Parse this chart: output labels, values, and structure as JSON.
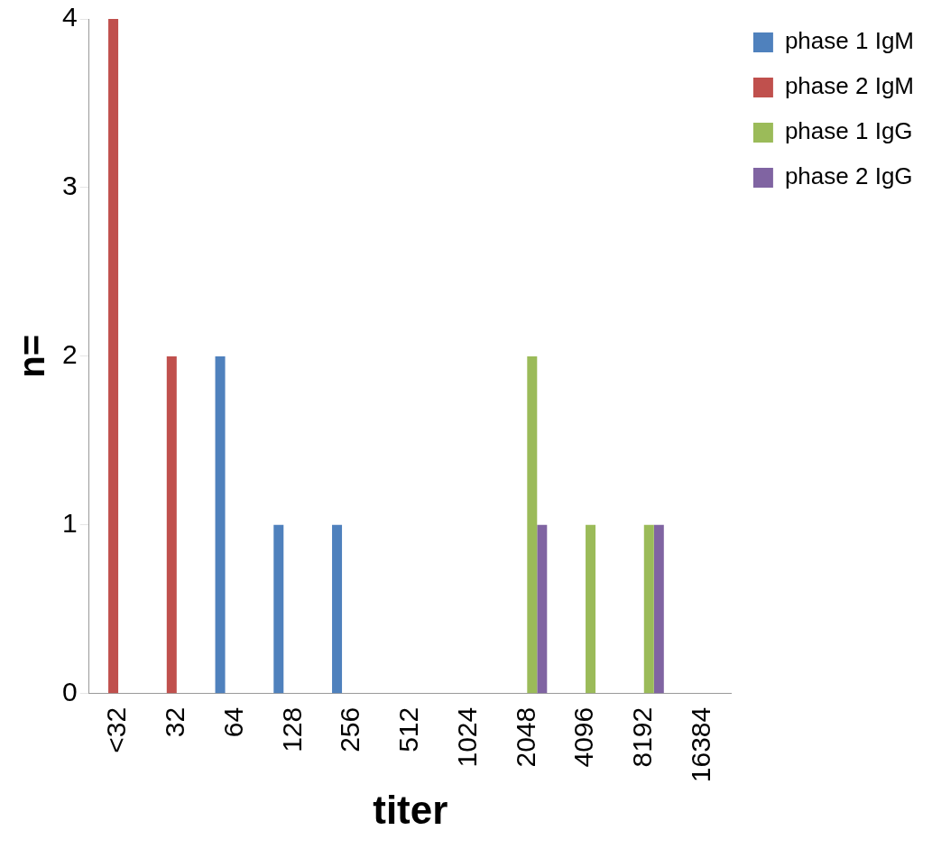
{
  "chart_data": {
    "type": "bar",
    "xlabel": "titer",
    "ylabel": "n=",
    "categories": [
      "<32",
      "32",
      "64",
      "128",
      "256",
      "512",
      "1024",
      "2048",
      "4096",
      "8192",
      "16384"
    ],
    "series": [
      {
        "name": "phase 1 IgM",
        "color": "#4f81bd",
        "values": [
          0,
          0,
          2,
          1,
          1,
          0,
          0,
          0,
          0,
          0,
          0
        ]
      },
      {
        "name": "phase 2 IgM",
        "color": "#c0504d",
        "values": [
          4,
          2,
          0,
          0,
          0,
          0,
          0,
          0,
          0,
          0,
          0
        ]
      },
      {
        "name": "phase 1 IgG",
        "color": "#9bbb59",
        "values": [
          0,
          0,
          0,
          0,
          0,
          0,
          0,
          2,
          1,
          1,
          0
        ]
      },
      {
        "name": "phase 2 IgG",
        "color": "#8064a2",
        "values": [
          0,
          0,
          0,
          0,
          0,
          0,
          0,
          1,
          0,
          1,
          0
        ]
      }
    ],
    "ylim": [
      0,
      4
    ],
    "yticks": [
      0,
      1,
      2,
      3,
      4
    ],
    "grid": false,
    "legend": "top right"
  }
}
